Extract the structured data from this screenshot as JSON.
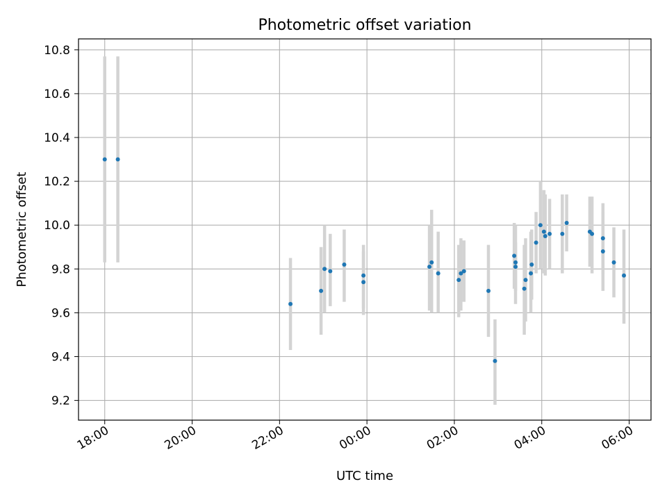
{
  "chart_data": {
    "type": "scatter",
    "title": "Photometric offset variation",
    "xlabel": "UTC time",
    "ylabel": "Photometric offset",
    "grid": true,
    "x_unit": "hours",
    "xlim": [
      17.4,
      30.5
    ],
    "ylim": [
      9.11,
      10.85
    ],
    "x_ticks": [
      18,
      20,
      22,
      24,
      26,
      28,
      30
    ],
    "x_tick_labels": [
      "18:00",
      "20:00",
      "22:00",
      "00:00",
      "02:00",
      "04:00",
      "06:00"
    ],
    "y_ticks": [
      9.2,
      9.4,
      9.6,
      9.8,
      10.0,
      10.2,
      10.4,
      10.6,
      10.8
    ],
    "y_tick_labels": [
      "9.2",
      "9.4",
      "9.6",
      "9.8",
      "10.0",
      "10.2",
      "10.4",
      "10.6",
      "10.8"
    ],
    "colors": {
      "points": "#1f77b4",
      "errorbars": "#d3d3d3",
      "grid": "#b0b0b0"
    },
    "points": [
      {
        "x": 18.0,
        "y": 10.3,
        "lo": 9.83,
        "hi": 10.77
      },
      {
        "x": 18.3,
        "y": 10.3,
        "lo": 9.83,
        "hi": 10.77
      },
      {
        "x": 22.25,
        "y": 9.64,
        "lo": 9.43,
        "hi": 9.85
      },
      {
        "x": 22.95,
        "y": 9.7,
        "lo": 9.5,
        "hi": 9.9
      },
      {
        "x": 23.03,
        "y": 9.8,
        "lo": 9.6,
        "hi": 10.0
      },
      {
        "x": 23.16,
        "y": 9.79,
        "lo": 9.63,
        "hi": 9.96
      },
      {
        "x": 23.48,
        "y": 9.82,
        "lo": 9.65,
        "hi": 9.98
      },
      {
        "x": 23.92,
        "y": 9.77,
        "lo": 9.62,
        "hi": 9.91
      },
      {
        "x": 23.92,
        "y": 9.74,
        "lo": 9.59,
        "hi": 9.88
      },
      {
        "x": 25.43,
        "y": 9.81,
        "lo": 9.61,
        "hi": 10.0
      },
      {
        "x": 25.48,
        "y": 9.83,
        "lo": 9.6,
        "hi": 10.07
      },
      {
        "x": 25.63,
        "y": 9.78,
        "lo": 9.6,
        "hi": 9.97
      },
      {
        "x": 26.1,
        "y": 9.75,
        "lo": 9.58,
        "hi": 9.91
      },
      {
        "x": 26.15,
        "y": 9.78,
        "lo": 9.61,
        "hi": 9.94
      },
      {
        "x": 26.22,
        "y": 9.79,
        "lo": 9.65,
        "hi": 9.93
      },
      {
        "x": 26.78,
        "y": 9.7,
        "lo": 9.49,
        "hi": 9.91
      },
      {
        "x": 26.93,
        "y": 9.38,
        "lo": 9.18,
        "hi": 9.57
      },
      {
        "x": 27.37,
        "y": 9.86,
        "lo": 9.71,
        "hi": 10.01
      },
      {
        "x": 27.4,
        "y": 9.83,
        "lo": 9.64,
        "hi": 10.0
      },
      {
        "x": 27.4,
        "y": 9.81,
        "lo": 9.7,
        "hi": 9.92
      },
      {
        "x": 27.6,
        "y": 9.71,
        "lo": 9.5,
        "hi": 9.91
      },
      {
        "x": 27.63,
        "y": 9.75,
        "lo": 9.56,
        "hi": 9.94
      },
      {
        "x": 27.75,
        "y": 9.78,
        "lo": 9.6,
        "hi": 9.97
      },
      {
        "x": 27.77,
        "y": 9.82,
        "lo": 9.66,
        "hi": 9.98
      },
      {
        "x": 27.87,
        "y": 9.92,
        "lo": 9.78,
        "hi": 10.06
      },
      {
        "x": 27.97,
        "y": 10.0,
        "lo": 9.8,
        "hi": 10.2
      },
      {
        "x": 28.05,
        "y": 9.97,
        "lo": 9.78,
        "hi": 10.16
      },
      {
        "x": 28.08,
        "y": 9.95,
        "lo": 9.77,
        "hi": 10.14
      },
      {
        "x": 28.18,
        "y": 9.96,
        "lo": 9.8,
        "hi": 10.12
      },
      {
        "x": 28.47,
        "y": 9.96,
        "lo": 9.78,
        "hi": 10.14
      },
      {
        "x": 28.57,
        "y": 10.01,
        "lo": 9.88,
        "hi": 10.14
      },
      {
        "x": 29.1,
        "y": 9.97,
        "lo": 9.81,
        "hi": 10.13
      },
      {
        "x": 29.15,
        "y": 9.96,
        "lo": 9.78,
        "hi": 10.13
      },
      {
        "x": 29.4,
        "y": 9.94,
        "lo": 9.78,
        "hi": 10.1
      },
      {
        "x": 29.4,
        "y": 9.88,
        "lo": 9.7,
        "hi": 10.06
      },
      {
        "x": 29.65,
        "y": 9.83,
        "lo": 9.67,
        "hi": 9.99
      },
      {
        "x": 29.88,
        "y": 9.77,
        "lo": 9.55,
        "hi": 9.98
      }
    ]
  }
}
